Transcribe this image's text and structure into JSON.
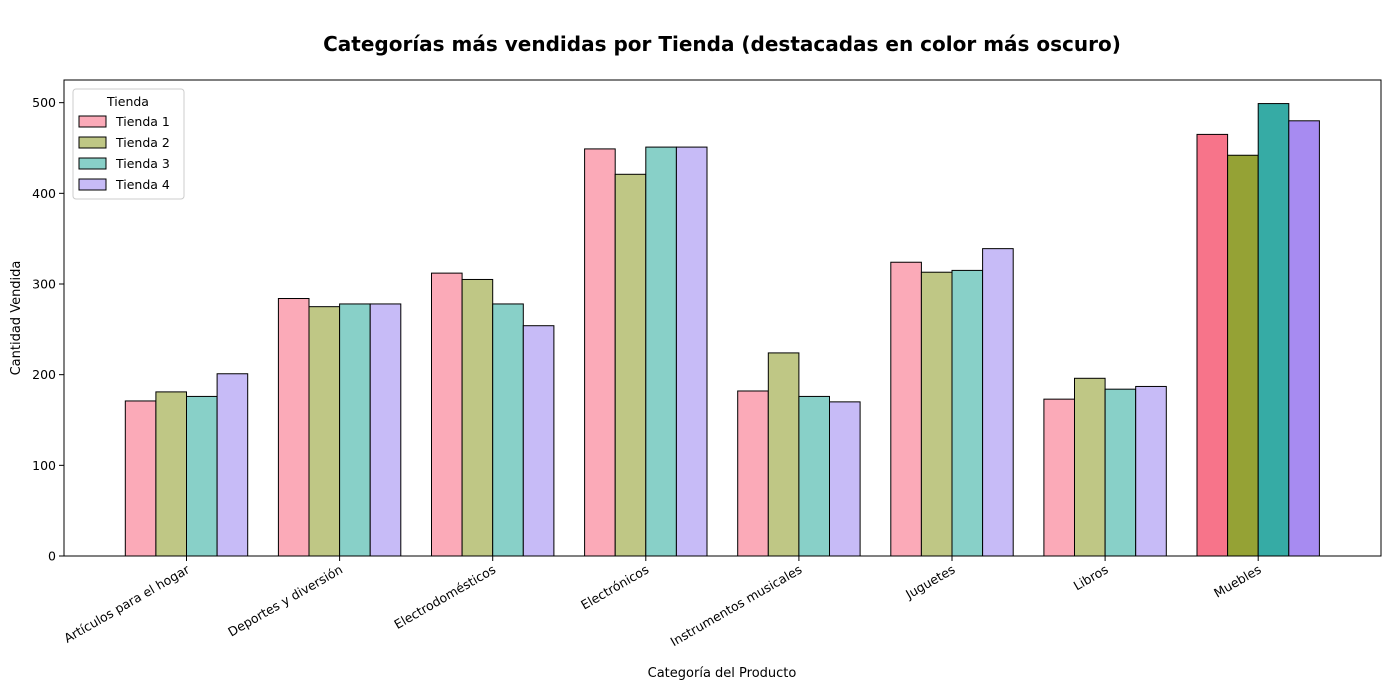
{
  "chart_data": {
    "type": "bar",
    "title": "Categorías más vendidas por Tienda (destacadas en color más oscuro)",
    "xlabel": "Categoría del Producto",
    "ylabel": "Cantidad Vendida",
    "ylim": [
      0,
      525
    ],
    "yticks": [
      0,
      100,
      200,
      300,
      400,
      500
    ],
    "grid": false,
    "categories": [
      "Artículos para el hogar",
      "Deportes y diversión",
      "Electrodomésticos",
      "Electrónicos",
      "Instrumentos musicales",
      "Juguetes",
      "Libros",
      "Muebles"
    ],
    "highlighted_category": "Muebles",
    "legend": {
      "title": "Tienda",
      "placement": "top-left"
    },
    "series": [
      {
        "name": "Tienda 1",
        "color": "#fbaab8",
        "highlight_color": "#f7748a",
        "values": [
          171,
          284,
          312,
          449,
          182,
          324,
          173,
          465
        ]
      },
      {
        "name": "Tienda 2",
        "color": "#bfc785",
        "highlight_color": "#95a235",
        "values": [
          181,
          275,
          305,
          421,
          224,
          313,
          196,
          442
        ]
      },
      {
        "name": "Tienda 3",
        "color": "#88d0c8",
        "highlight_color": "#36aba5",
        "values": [
          176,
          278,
          278,
          451,
          176,
          315,
          184,
          499
        ]
      },
      {
        "name": "Tienda 4",
        "color": "#c7bbf7",
        "highlight_color": "#a78bf1",
        "values": [
          201,
          278,
          254,
          451,
          170,
          339,
          187,
          480
        ]
      }
    ]
  }
}
